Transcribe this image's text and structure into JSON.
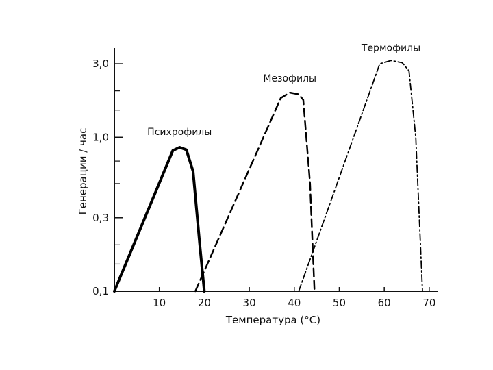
{
  "chart_data": {
    "type": "line",
    "xlabel": "Температура (°С)",
    "ylabel": "Генерации / час",
    "x_ticks": [
      "10",
      "20",
      "30",
      "40",
      "50",
      "60",
      "70"
    ],
    "x_tick_values": [
      10,
      20,
      30,
      40,
      50,
      60,
      70
    ],
    "y_ticks": [
      "0,1",
      "0,3",
      "1,0",
      "3,0"
    ],
    "y_tick_values": [
      0.1,
      0.3,
      1.0,
      3.0
    ],
    "y_scale": "log",
    "xlim": [
      0,
      72
    ],
    "ylim": [
      0.1,
      3.8
    ],
    "grid": false,
    "series": [
      {
        "name": "Психрофилы",
        "color": "#000000",
        "style": "solid-thick",
        "points": [
          [
            0,
            0.1
          ],
          [
            13,
            0.82
          ],
          [
            14.5,
            0.86
          ],
          [
            16,
            0.83
          ],
          [
            17.5,
            0.6
          ],
          [
            19,
            0.2
          ],
          [
            20,
            0.1
          ]
        ]
      },
      {
        "name": "Мезофилы",
        "color": "#000000",
        "style": "dashed",
        "points": [
          [
            18,
            0.1
          ],
          [
            37,
            1.8
          ],
          [
            39,
            1.95
          ],
          [
            41,
            1.9
          ],
          [
            42,
            1.75
          ],
          [
            43.5,
            0.5
          ],
          [
            44.5,
            0.1
          ]
        ]
      },
      {
        "name": "Термофилы",
        "color": "#000000",
        "style": "dash-dot",
        "points": [
          [
            41,
            0.1
          ],
          [
            59,
            3.0
          ],
          [
            61.5,
            3.15
          ],
          [
            64,
            3.05
          ],
          [
            65.5,
            2.7
          ],
          [
            67,
            1.0
          ],
          [
            68.5,
            0.1
          ]
        ]
      }
    ]
  }
}
